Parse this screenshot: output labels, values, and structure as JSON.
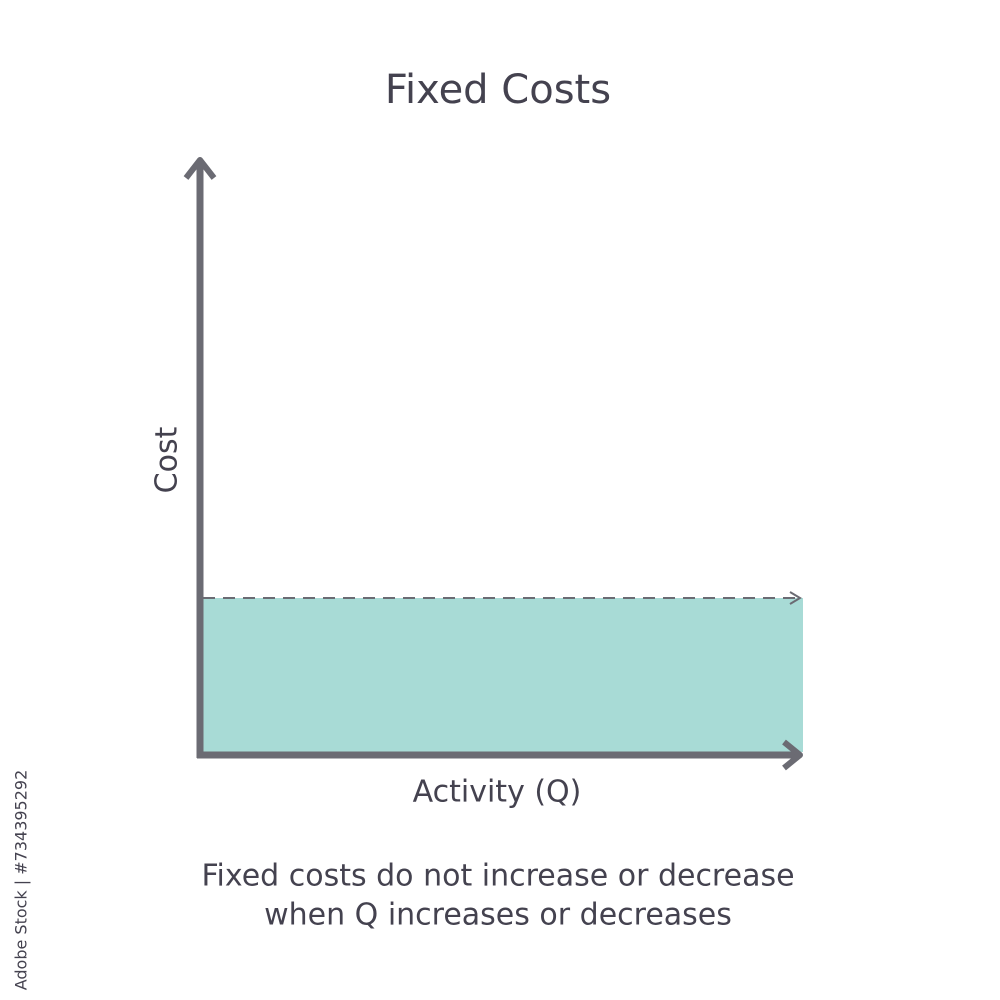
{
  "title": "Fixed Costs",
  "y_axis_label": "Cost",
  "x_axis_label": "Activity (Q)",
  "caption": [
    "Fixed costs do not increase or decrease",
    "when Q increases or decreases"
  ],
  "side_text": "Adobe Stock | #734395292"
}
